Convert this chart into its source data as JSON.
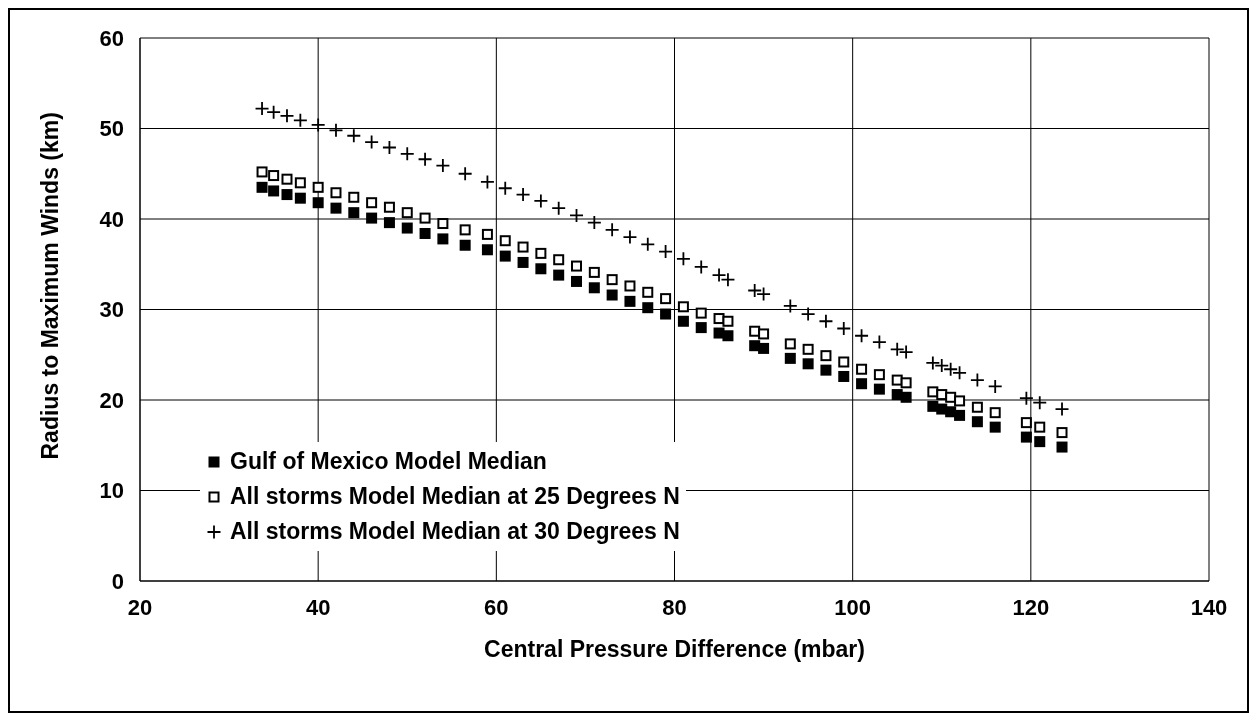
{
  "chart_data": {
    "type": "scatter",
    "xlabel": "Central Pressure Difference (mbar)",
    "ylabel": "Radius to Maximum Winds (km)",
    "x": [
      33.7,
      35,
      36.5,
      38,
      40,
      42,
      44,
      46,
      48,
      50,
      52,
      54,
      56.5,
      59,
      61,
      63,
      65,
      67,
      69,
      71,
      73,
      75,
      77,
      79,
      81,
      83,
      85,
      86,
      89,
      90,
      93,
      95,
      97,
      99,
      101,
      103,
      105,
      106,
      109,
      110,
      111,
      112,
      114,
      116,
      119.5,
      121,
      123.5
    ],
    "series": [
      {
        "name": "Gulf of Mexico Model Median",
        "color": "#000000",
        "marker": "square",
        "values": [
          43.5,
          43.1,
          42.7,
          42.3,
          41.8,
          41.2,
          40.7,
          40.1,
          39.6,
          39.0,
          38.4,
          37.8,
          37.1,
          36.6,
          35.9,
          35.2,
          34.5,
          33.8,
          33.1,
          32.4,
          31.6,
          30.9,
          30.2,
          29.5,
          28.7,
          28.0,
          27.4,
          27.1,
          26.0,
          25.7,
          24.6,
          24.0,
          23.3,
          22.6,
          21.8,
          21.2,
          20.6,
          20.3,
          19.3,
          19.0,
          18.7,
          18.3,
          17.6,
          17.0,
          15.9,
          15.4,
          14.8
        ]
      },
      {
        "name": "All storms Model Median at 25 Degrees N",
        "color": "#000000",
        "marker": "square",
        "values": [
          45.2,
          44.8,
          44.4,
          44.0,
          43.5,
          42.9,
          42.4,
          41.8,
          41.3,
          40.7,
          40.1,
          39.5,
          38.8,
          38.3,
          37.6,
          36.9,
          36.2,
          35.5,
          34.8,
          34.1,
          33.3,
          32.6,
          31.9,
          31.2,
          30.3,
          29.6,
          29.0,
          28.7,
          27.6,
          27.3,
          26.2,
          25.6,
          24.9,
          24.2,
          23.4,
          22.8,
          22.2,
          21.9,
          20.9,
          20.6,
          20.3,
          19.9,
          19.2,
          18.6,
          17.5,
          17.0,
          16.4
        ]
      },
      {
        "name": "All storms Model Median at 30 Degrees N",
        "color": "#000000",
        "marker": "cross",
        "values": [
          52.2,
          51.8,
          51.4,
          50.9,
          50.4,
          49.8,
          49.2,
          48.5,
          47.9,
          47.2,
          46.6,
          45.9,
          45.0,
          44.1,
          43.4,
          42.7,
          42.0,
          41.2,
          40.4,
          39.6,
          38.8,
          38.0,
          37.2,
          36.4,
          35.6,
          34.7,
          33.8,
          33.3,
          32.1,
          31.7,
          30.4,
          29.5,
          28.7,
          27.9,
          27.1,
          26.4,
          25.6,
          25.3,
          24.1,
          23.8,
          23.4,
          23.0,
          22.2,
          21.5,
          20.2,
          19.7,
          19.0
        ]
      }
    ],
    "xlim": [
      20,
      140
    ],
    "xticks": [
      20,
      40,
      60,
      80,
      100,
      120,
      140
    ],
    "ylim": [
      0,
      60
    ],
    "yticks": [
      0,
      10,
      20,
      30,
      40,
      50,
      60
    ],
    "grid": true,
    "legend": "bottom left"
  }
}
